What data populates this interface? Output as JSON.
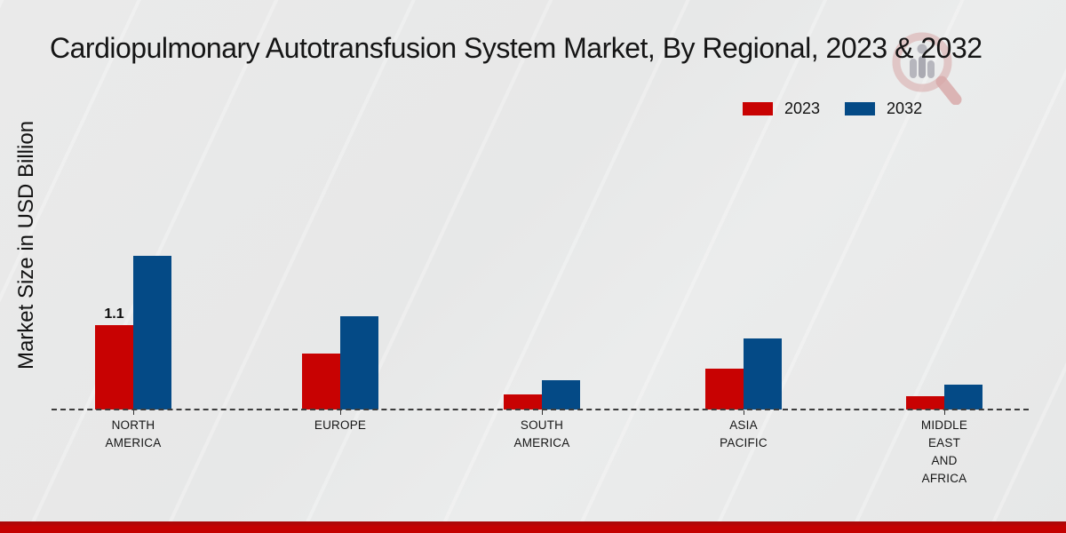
{
  "page": {
    "title": "Cardiopulmonary Autotransfusion System Market, By Regional, 2023 & 2032"
  },
  "y_axis": {
    "label": "Market Size in USD Billion"
  },
  "colors": {
    "series_2023": "#c80202",
    "series_2032": "#044a86",
    "background": "#e8e9e9",
    "bottom_strip": "#c40101",
    "baseline": "#3c3c3c",
    "text": "#161616"
  },
  "chart_data": {
    "type": "bar",
    "title": "Cardiopulmonary Autotransfusion System Market, By Regional, 2023 & 2032",
    "xlabel": "",
    "ylabel": "Market Size in USD Billion",
    "unit": "USD Billion",
    "categories": [
      "NORTH AMERICA",
      "EUROPE",
      "SOUTH AMERICA",
      "ASIA PACIFIC",
      "MIDDLE EAST AND AFRICA"
    ],
    "category_label_lines": [
      [
        "NORTH",
        "AMERICA"
      ],
      [
        "EUROPE"
      ],
      [
        "SOUTH",
        "AMERICA"
      ],
      [
        "ASIA",
        "PACIFIC"
      ],
      [
        "MIDDLE",
        "EAST",
        "AND",
        "AFRICA"
      ]
    ],
    "series": [
      {
        "name": "2023",
        "color": "#c80202",
        "values": [
          1.1,
          0.73,
          0.2,
          0.53,
          0.17
        ]
      },
      {
        "name": "2032",
        "color": "#044a86",
        "values": [
          2.0,
          1.22,
          0.38,
          0.93,
          0.33
        ]
      }
    ],
    "annotations": [
      {
        "series": "2023",
        "category": "NORTH AMERICA",
        "category_index": 0,
        "text": "1.1"
      }
    ],
    "ylim": [
      0,
      2.3
    ],
    "grid": false,
    "axis_ticks_visible": false,
    "legend_position": "top-right",
    "baseline_style": "dashed"
  },
  "watermark": {
    "name": "market-research-magnifier-logo"
  }
}
